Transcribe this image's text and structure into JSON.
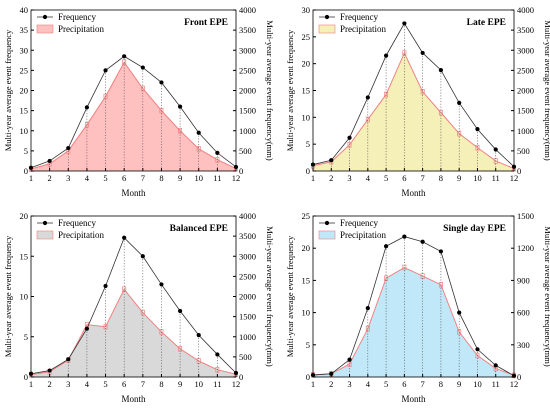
{
  "chart_data": [
    {
      "type": "line",
      "title": "Front EPE",
      "xlabel": "Month",
      "ylabel": "Multi-year average event frequency",
      "y2label": "Multi-year average event frequency(mm)",
      "x": [
        1,
        2,
        3,
        4,
        5,
        6,
        7,
        8,
        9,
        10,
        11,
        12
      ],
      "ylim": [
        0,
        40
      ],
      "yticks": [
        0,
        5,
        10,
        15,
        20,
        25,
        30,
        35,
        40
      ],
      "y2lim": [
        0,
        4000
      ],
      "y2ticks": [
        0,
        500,
        1000,
        1500,
        2000,
        2500,
        3000,
        3500,
        4000
      ],
      "fill_color": "#ffc0c0",
      "line_color": "#f08080",
      "legend_position": "top-left",
      "series": [
        {
          "name": "Frequency",
          "axis": "left",
          "values": [
            0.8,
            2.5,
            5.7,
            15.8,
            25.0,
            28.5,
            25.7,
            22.0,
            16.0,
            9.5,
            4.5,
            1.0
          ]
        },
        {
          "name": "Precipitation",
          "axis": "right",
          "values": [
            50,
            180,
            500,
            1150,
            1850,
            2700,
            2050,
            1500,
            1000,
            550,
            280,
            60
          ]
        }
      ]
    },
    {
      "type": "line",
      "title": "Late EPE",
      "xlabel": "Month",
      "ylabel": "Multi-year average event frequency",
      "y2label": "Multi-year average event frequency(mm)",
      "x": [
        1,
        2,
        3,
        4,
        5,
        6,
        7,
        8,
        9,
        10,
        11,
        12
      ],
      "ylim": [
        0,
        30
      ],
      "yticks": [
        0,
        5,
        10,
        15,
        20,
        25,
        30
      ],
      "y2lim": [
        0,
        4000
      ],
      "y2ticks": [
        0,
        500,
        1000,
        1500,
        2000,
        2500,
        3000,
        3500,
        4000
      ],
      "fill_color": "#f5f0b8",
      "line_color": "#f08080",
      "legend_position": "top-left",
      "series": [
        {
          "name": "Frequency",
          "axis": "left",
          "values": [
            1.2,
            2.0,
            6.2,
            13.7,
            21.5,
            27.5,
            22.0,
            18.8,
            12.7,
            7.8,
            4.0,
            0.8
          ]
        },
        {
          "name": "Precipitation",
          "axis": "right",
          "values": [
            130,
            230,
            650,
            1280,
            1900,
            2930,
            1970,
            1450,
            930,
            580,
            250,
            60
          ]
        }
      ]
    },
    {
      "type": "line",
      "title": "Balanced EPE",
      "xlabel": "Month",
      "ylabel": "Multi-year average event frequency",
      "y2label": "Multi-year average event frequency(mm)",
      "x": [
        1,
        2,
        3,
        4,
        5,
        6,
        7,
        8,
        9,
        10,
        11,
        12
      ],
      "ylim": [
        0,
        20
      ],
      "yticks": [
        0,
        5,
        10,
        15,
        20
      ],
      "y2lim": [
        0,
        4000
      ],
      "y2ticks": [
        0,
        500,
        1000,
        1500,
        2000,
        2500,
        3000,
        3500,
        4000
      ],
      "fill_color": "#d9d9d9",
      "line_color": "#f08080",
      "legend_position": "top-left",
      "series": [
        {
          "name": "Frequency",
          "axis": "left",
          "values": [
            0.4,
            0.8,
            2.2,
            6.0,
            11.3,
            17.3,
            15.0,
            11.5,
            8.2,
            5.2,
            2.8,
            0.5
          ]
        },
        {
          "name": "Precipitation",
          "axis": "right",
          "values": [
            60,
            130,
            420,
            1300,
            1250,
            2180,
            1600,
            1120,
            700,
            400,
            180,
            70
          ]
        }
      ]
    },
    {
      "type": "line",
      "title": "Single day EPE",
      "xlabel": "Month",
      "ylabel": "Multi-year average event frequency",
      "y2label": "Multi-year average event frequency(mm)",
      "x": [
        1,
        2,
        3,
        4,
        5,
        6,
        7,
        8,
        9,
        10,
        11,
        12
      ],
      "ylim": [
        0,
        25
      ],
      "yticks": [
        0,
        5,
        10,
        15,
        20,
        25
      ],
      "y2lim": [
        0,
        1500
      ],
      "y2ticks": [
        0,
        300,
        600,
        900,
        1200,
        1500
      ],
      "fill_color": "#c0e8f8",
      "line_color": "#f08080",
      "legend_position": "top-left",
      "series": [
        {
          "name": "Frequency",
          "axis": "left",
          "values": [
            0.3,
            0.5,
            2.7,
            10.7,
            20.3,
            21.8,
            21.0,
            19.5,
            10.0,
            4.3,
            1.8,
            0.2
          ]
        },
        {
          "name": "Precipitation",
          "axis": "right",
          "values": [
            20,
            30,
            120,
            450,
            920,
            1020,
            940,
            860,
            420,
            200,
            80,
            15
          ]
        }
      ]
    }
  ]
}
